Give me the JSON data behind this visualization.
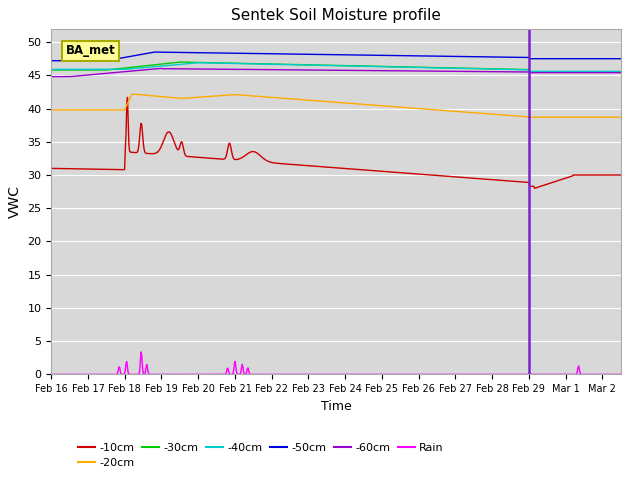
{
  "title": "Sentek Soil Moisture profile",
  "xlabel": "Time",
  "ylabel": "VWC",
  "ylim": [
    0,
    52
  ],
  "yticks": [
    0,
    5,
    10,
    15,
    20,
    25,
    30,
    35,
    40,
    45,
    50
  ],
  "plot_bg_color": "#d8d8d8",
  "legend_label": "BA_met",
  "line_colors": {
    "-10cm": "#cc0000",
    "-20cm": "#ffaa00",
    "-30cm": "#00cc00",
    "-40cm": "#00cccc",
    "-50cm": "#0000dd",
    "-60cm": "#9900cc",
    "Rain": "#ff00ff"
  },
  "vline_x": 13.0,
  "vline_color": "#7722cc",
  "date_labels": [
    "Feb 16",
    "Feb 17",
    "Feb 18",
    "Feb 19",
    "Feb 20",
    "Feb 21",
    "Feb 22",
    "Feb 23",
    "Feb 24",
    "Feb 25",
    "Feb 26",
    "Feb 27",
    "Feb 28",
    "Feb 29",
    "Mar 1",
    "Mar 2"
  ],
  "date_positions": [
    0,
    1,
    2,
    3,
    4,
    5,
    6,
    7,
    8,
    9,
    10,
    11,
    12,
    13,
    14,
    15
  ]
}
